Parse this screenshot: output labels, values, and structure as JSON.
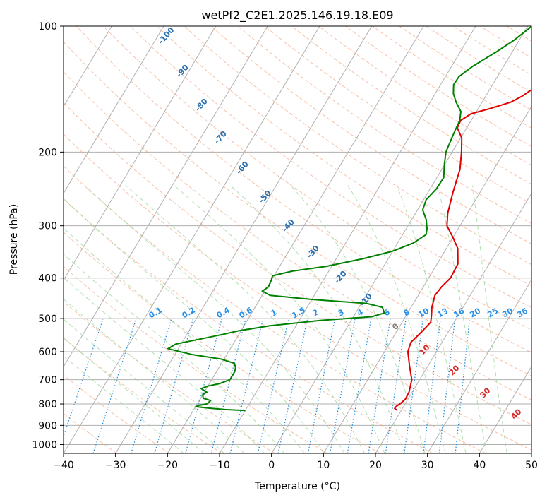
{
  "chart_data": {
    "type": "line",
    "subtype": "skew-T log-P diagram",
    "title": "wetPf2_C2E1.2025.146.19.18.E09",
    "xlabel": "Temperature (°C)",
    "ylabel": "Pressure (hPa)",
    "xlim": [
      -40,
      50
    ],
    "ylim": [
      1050,
      100
    ],
    "yscale": "log",
    "grid": true,
    "x_ticks": [
      "−40",
      "−30",
      "−20",
      "−10",
      "0",
      "10",
      "20",
      "30",
      "40",
      "50"
    ],
    "y_ticks": [
      "100",
      "200",
      "300",
      "400",
      "500",
      "600",
      "700",
      "800",
      "900",
      "1000"
    ],
    "series": [
      {
        "color": "#e00000",
        "points": [
          [
            829,
            19.3
          ],
          [
            820,
            18.5
          ],
          [
            810,
            18.6
          ],
          [
            800,
            19.0
          ],
          [
            780,
            19.5
          ],
          [
            750,
            19.4
          ],
          [
            700,
            18.5
          ],
          [
            650,
            16.5
          ],
          [
            600,
            14.5
          ],
          [
            570,
            14.0
          ],
          [
            540,
            14.8
          ],
          [
            510,
            15.5
          ],
          [
            490,
            14.8
          ],
          [
            470,
            14.0
          ],
          [
            440,
            13.2
          ],
          [
            420,
            13.5
          ],
          [
            400,
            14.2
          ],
          [
            370,
            14.0
          ],
          [
            340,
            12.2
          ],
          [
            320,
            10.0
          ],
          [
            300,
            7.5
          ],
          [
            280,
            6.2
          ],
          [
            250,
            4.8
          ],
          [
            220,
            3.5
          ],
          [
            200,
            1.8
          ],
          [
            185,
            0.2
          ],
          [
            175,
            -1.8
          ],
          [
            168,
            -2.0
          ],
          [
            162,
            -0.8
          ],
          [
            157,
            2.5
          ],
          [
            152,
            5.5
          ],
          [
            147,
            7.0
          ],
          [
            140,
            8.5
          ],
          [
            132,
            8.5
          ],
          [
            122,
            8.0
          ],
          [
            114,
            8.0
          ],
          [
            108,
            8.5
          ],
          [
            102,
            9.8
          ],
          [
            100,
            10.2
          ]
        ]
      },
      {
        "color": "#008000",
        "points": [
          [
            829,
            -10.0
          ],
          [
            825,
            -14.0
          ],
          [
            818,
            -17.5
          ],
          [
            812,
            -20.0
          ],
          [
            806,
            -19.5
          ],
          [
            800,
            -18.2
          ],
          [
            795,
            -18.0
          ],
          [
            785,
            -17.8
          ],
          [
            775,
            -19.5
          ],
          [
            760,
            -20.0
          ],
          [
            750,
            -19.5
          ],
          [
            735,
            -21.0
          ],
          [
            725,
            -20.0
          ],
          [
            715,
            -18.0
          ],
          [
            700,
            -16.5
          ],
          [
            690,
            -16.5
          ],
          [
            670,
            -16.5
          ],
          [
            655,
            -16.8
          ],
          [
            640,
            -17.5
          ],
          [
            625,
            -20.5
          ],
          [
            610,
            -26.5
          ],
          [
            590,
            -32.0
          ],
          [
            575,
            -31.0
          ],
          [
            560,
            -27.0
          ],
          [
            545,
            -23.0
          ],
          [
            535,
            -20.5
          ],
          [
            520,
            -15.0
          ],
          [
            505,
            -6.0
          ],
          [
            495,
            3.5
          ],
          [
            485,
            5.5
          ],
          [
            470,
            4.5
          ],
          [
            460,
            1.0
          ],
          [
            450,
            -10.0
          ],
          [
            440,
            -18.5
          ],
          [
            430,
            -20.5
          ],
          [
            420,
            -19.8
          ],
          [
            405,
            -20.0
          ],
          [
            395,
            -20.3
          ],
          [
            385,
            -17.0
          ],
          [
            375,
            -11.0
          ],
          [
            360,
            -5.0
          ],
          [
            345,
            0.0
          ],
          [
            330,
            3.0
          ],
          [
            315,
            4.5
          ],
          [
            305,
            4.0
          ],
          [
            290,
            2.8
          ],
          [
            275,
            1.0
          ],
          [
            260,
            0.5
          ],
          [
            245,
            1.2
          ],
          [
            230,
            1.3
          ],
          [
            215,
            0.0
          ],
          [
            200,
            -1.2
          ],
          [
            185,
            -1.7
          ],
          [
            175,
            -2.0
          ],
          [
            168,
            -2.2
          ],
          [
            160,
            -3.0
          ],
          [
            152,
            -5.0
          ],
          [
            145,
            -6.5
          ],
          [
            138,
            -7.5
          ],
          [
            132,
            -7.4
          ],
          [
            125,
            -6.0
          ],
          [
            115,
            -3.0
          ],
          [
            108,
            -1.0
          ],
          [
            100,
            0.8
          ]
        ]
      }
    ],
    "annotations": {
      "dry_adiabats": [
        "-100",
        "-90",
        "-80",
        "-70",
        "-60",
        "-50",
        "-40",
        "-30",
        "-20",
        "-10"
      ],
      "mixing_ratio_lines": [
        "0.1",
        "0.2",
        "0.4",
        "0.6",
        "1",
        "1.5",
        "2",
        "3",
        "4",
        "6",
        "8",
        "10",
        "13",
        "16",
        "20",
        "25",
        "30",
        "36"
      ],
      "moist_adiabats": [
        "0",
        "10",
        "20",
        "30",
        "40"
      ]
    }
  },
  "colors": {
    "temperature": "#e00000",
    "dewpoint": "#008000",
    "dry_adiabat": "#f4a582",
    "moist_adiabat": "#9fd89f",
    "mixing_ratio": "#1f8ce0",
    "dry_adiabat_label": "#2a6fb0",
    "moist_label": "#d62728",
    "isotherm_grid": "#b0b0b0"
  }
}
